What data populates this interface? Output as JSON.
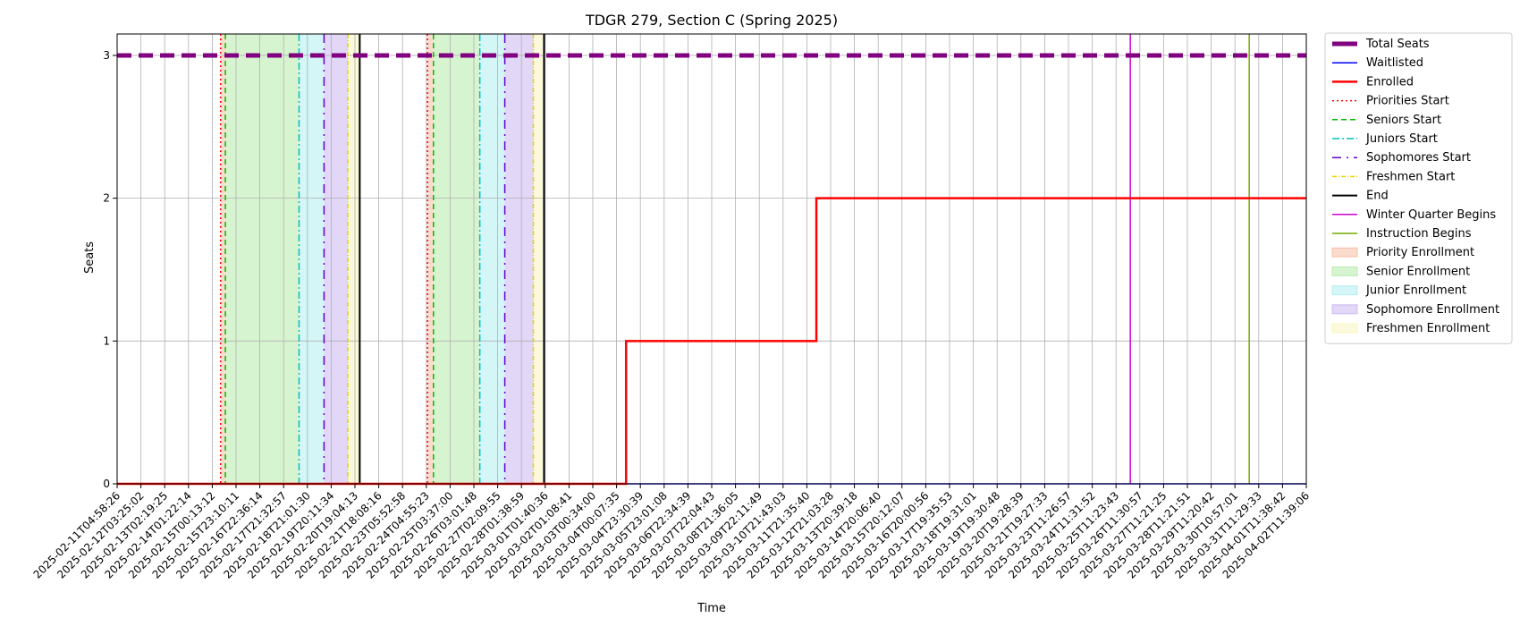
{
  "chart_data": {
    "type": "line",
    "title": "TDGR 279, Section C (Spring 2025)",
    "xlabel": "Time",
    "ylabel": "Seats",
    "ylim": [
      0,
      3.15
    ],
    "yticks": [
      0,
      1,
      2,
      3
    ],
    "grid": true,
    "legend_position": "outside-right",
    "x_ticks": [
      "2025-02-11T04:58:26",
      "2025-02-12T03:25:02",
      "2025-02-13T02:19:25",
      "2025-02-14T01:22:14",
      "2025-02-15T00:13:12",
      "2025-02-15T23:10:11",
      "2025-02-16T22:36:14",
      "2025-02-17T21:32:57",
      "2025-02-18T21:01:30",
      "2025-02-19T20:11:34",
      "2025-02-20T19:04:13",
      "2025-02-21T18:08:16",
      "2025-02-23T05:52:58",
      "2025-02-24T04:55:23",
      "2025-02-25T03:37:00",
      "2025-02-26T03:01:48",
      "2025-02-27T02:09:55",
      "2025-02-28T01:38:59",
      "2025-03-01T01:40:36",
      "2025-03-02T01:08:41",
      "2025-03-03T00:34:00",
      "2025-03-04T00:07:35",
      "2025-03-04T23:30:39",
      "2025-03-05T23:01:08",
      "2025-03-06T22:34:39",
      "2025-03-07T22:04:43",
      "2025-03-08T21:36:05",
      "2025-03-09T22:11:49",
      "2025-03-10T21:43:03",
      "2025-03-11T21:35:40",
      "2025-03-12T21:03:28",
      "2025-03-13T20:39:18",
      "2025-03-14T20:06:40",
      "2025-03-15T20:12:07",
      "2025-03-16T20:00:56",
      "2025-03-17T19:35:53",
      "2025-03-18T19:31:01",
      "2025-03-19T19:30:48",
      "2025-03-20T19:28:39",
      "2025-03-21T19:27:33",
      "2025-03-23T11:26:57",
      "2025-03-24T11:31:52",
      "2025-03-25T11:23:43",
      "2025-03-26T11:30:57",
      "2025-03-27T11:21:25",
      "2025-03-28T11:21:51",
      "2025-03-29T11:20:42",
      "2025-03-30T10:57:01",
      "2025-03-31T11:29:33",
      "2025-04-01T11:38:42",
      "2025-04-02T11:39:06"
    ],
    "series": [
      {
        "name": "Total Seats",
        "color": "#800080",
        "style": "dashed-thick",
        "points": [
          [
            0,
            3
          ],
          [
            50,
            3
          ]
        ]
      },
      {
        "name": "Waitlisted",
        "color": "#0000ff",
        "style": "solid",
        "points": [
          [
            0,
            0
          ],
          [
            50,
            0
          ]
        ]
      },
      {
        "name": "Enrolled",
        "color": "#ff0000",
        "style": "steps",
        "points": [
          [
            0,
            0
          ],
          [
            21.4,
            0
          ],
          [
            21.4,
            1
          ],
          [
            29.4,
            1
          ],
          [
            29.4,
            2
          ],
          [
            50,
            2
          ]
        ]
      }
    ],
    "vertical_lines": [
      {
        "name": "Priorities Start",
        "color": "#ff0000",
        "style": "dotted",
        "x": [
          4.35,
          13.05
        ]
      },
      {
        "name": "Seniors Start",
        "color": "#00bb00",
        "style": "dashed",
        "x": [
          4.55,
          13.3
        ]
      },
      {
        "name": "Juniors Start",
        "color": "#00bfbf",
        "style": "dashdot",
        "x": [
          7.65,
          15.25
        ]
      },
      {
        "name": "Sophomores Start",
        "color": "#6600cc",
        "style": "dashdot-sparse",
        "x": [
          8.7,
          16.3
        ]
      },
      {
        "name": "Freshmen Start",
        "color": "#e6d200",
        "style": "dashdot-dense",
        "x": [
          9.7,
          17.5
        ]
      },
      {
        "name": "End",
        "color": "#000000",
        "style": "solid",
        "x": [
          10.2,
          17.95
        ]
      },
      {
        "name": "Winter Quarter Begins",
        "color": "#cc00cc",
        "style": "solid",
        "x": [
          42.6
        ]
      },
      {
        "name": "Instruction Begins",
        "color": "#77aa00",
        "style": "solid",
        "x": [
          47.6
        ]
      }
    ],
    "shaded_regions": [
      {
        "name": "Priority Enrollment",
        "color": "#f4a582",
        "ranges": [
          [
            4.35,
            4.55
          ],
          [
            13.05,
            13.3
          ]
        ]
      },
      {
        "name": "Senior Enrollment",
        "color": "#9be38a",
        "ranges": [
          [
            4.55,
            7.65
          ],
          [
            13.3,
            15.25
          ]
        ]
      },
      {
        "name": "Junior Enrollment",
        "color": "#94e8ec",
        "ranges": [
          [
            7.65,
            8.7
          ],
          [
            15.25,
            16.3
          ]
        ]
      },
      {
        "name": "Sophomore Enrollment",
        "color": "#b79cec",
        "ranges": [
          [
            8.7,
            9.7
          ],
          [
            16.3,
            17.5
          ]
        ]
      },
      {
        "name": "Freshmen Enrollment",
        "color": "#f5f1a6",
        "ranges": [
          [
            9.7,
            10.2
          ],
          [
            17.5,
            17.95
          ]
        ]
      }
    ]
  }
}
